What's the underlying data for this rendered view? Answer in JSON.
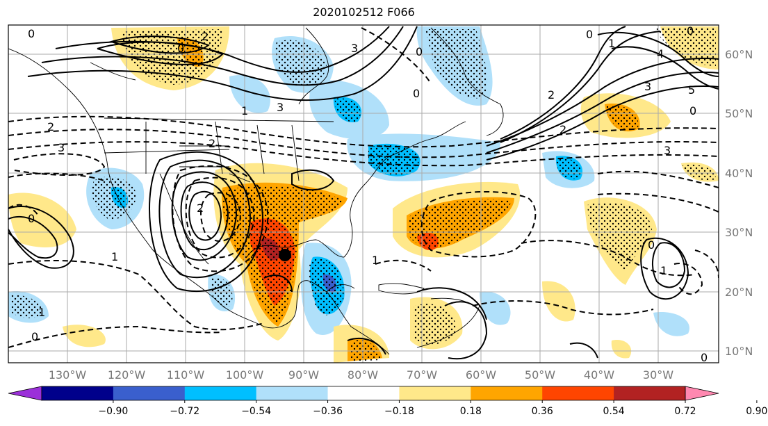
{
  "title": "2020102512 F066",
  "longitude_labels": [
    "130°W",
    "120°W",
    "110°W",
    "100°W",
    "90°W",
    "80°W",
    "70°W",
    "60°W",
    "50°W",
    "40°W",
    "30°W"
  ],
  "latitude_labels": [
    "60°N",
    "50°N",
    "40°N",
    "30°N",
    "20°N",
    "10°N"
  ],
  "colorbar": {
    "ticks": [
      "−0.90",
      "−0.72",
      "−0.54",
      "−0.36",
      "−0.18",
      "0.18",
      "0.36",
      "0.54",
      "0.72",
      "0.90"
    ],
    "colors": [
      "#9b30d9",
      "#00008b",
      "#3a5fcd",
      "#00bfff",
      "#b0e0fa",
      "#ffffff",
      "#ffe88a",
      "#ffa500",
      "#ff4500",
      "#b22222",
      "#ff88b0"
    ]
  },
  "storm_marker": {
    "lon": -93.5,
    "lat": 26.0
  },
  "contour_labels": [
    "0",
    "2",
    "0",
    "3",
    "0",
    "2",
    "1",
    "0",
    "3",
    "4",
    "5",
    "0",
    "1",
    "2",
    "3",
    "0",
    "3",
    "2",
    "0",
    "3",
    "2",
    "1",
    "0",
    "1",
    "2",
    "1",
    "0",
    "1",
    "0",
    "0"
  ]
}
